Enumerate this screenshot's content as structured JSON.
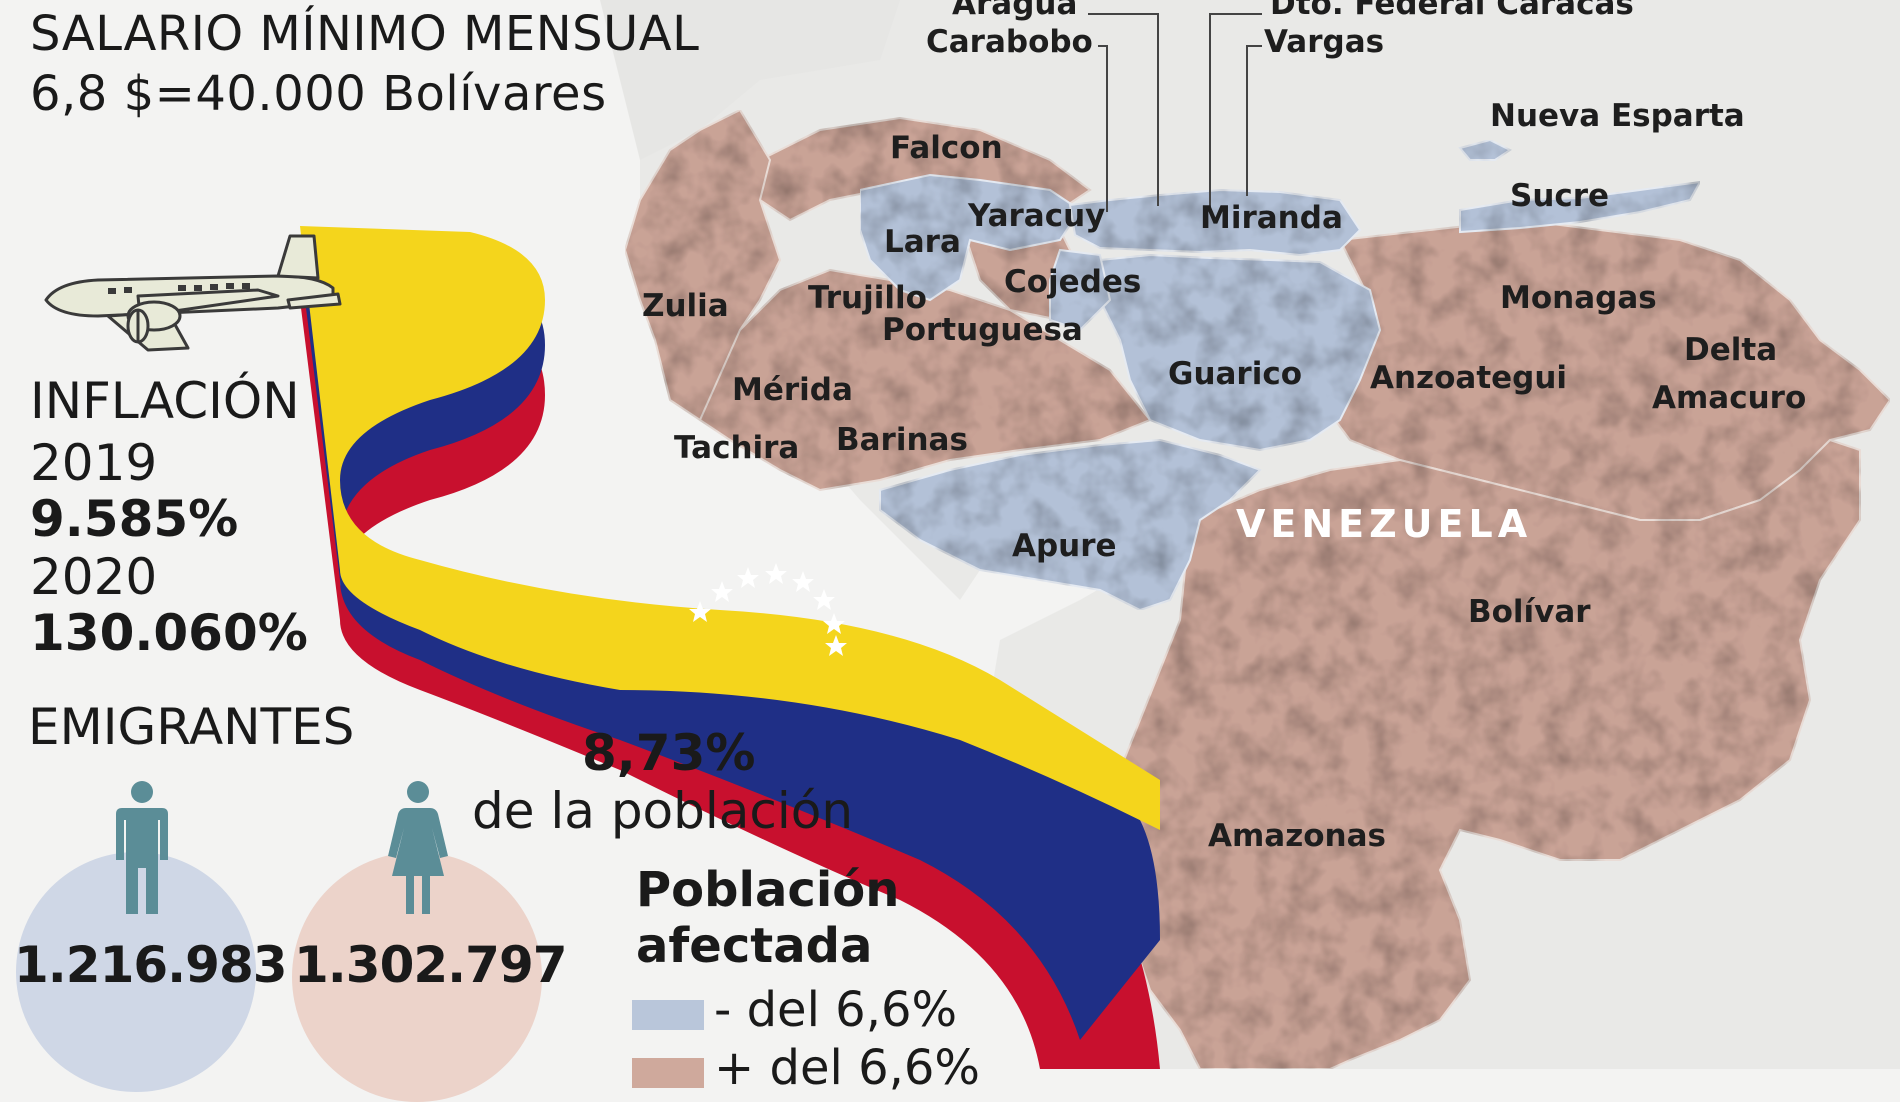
{
  "salary": {
    "title": "SALARIO MÍNIMO MENSUAL",
    "value": "6,8 $=40.000 Bolívares"
  },
  "inflation": {
    "title": "INFLACIÓN",
    "year_1": "2019",
    "value_1": "9.585%",
    "year_2": "2020",
    "value_2": "130.060%"
  },
  "emigrants": {
    "title": "EMIGRANTES",
    "men": "1.216.983",
    "women": "1.302.797",
    "percent": "8,73%",
    "percent_label": "de la población"
  },
  "legend": {
    "title_1": "Población",
    "title_2": "afectada",
    "less_label": "- del 6,6%",
    "more_label": "+ del 6,6%",
    "less_color": "#b9c6da",
    "more_color": "#cfa99c"
  },
  "map": {
    "country": "VENEZUELA",
    "regions": {
      "aragua": "Aragua",
      "carabobo": "Carabobo",
      "dto_federal": "Dto. Federal Caracas",
      "vargas": "Vargas",
      "nueva_esparta": "Nueva Esparta",
      "falcon": "Falcon",
      "sucre": "Sucre",
      "lara": "Lara",
      "yaracuy": "Yaracuy",
      "miranda": "Miranda",
      "zulia": "Zulia",
      "trujillo": "Trujillo",
      "cojedes": "Cojedes",
      "monagas": "Monagas",
      "portuguesa": "Portuguesa",
      "delta": "Delta",
      "amacuro": "Amacuro",
      "guarico": "Guarico",
      "anzoategui": "Anzoategui",
      "merida": "Mérida",
      "tachira": "Tachira",
      "barinas": "Barinas",
      "apure": "Apure",
      "bolivar": "Bolívar",
      "amazonas": "Amazonas"
    }
  },
  "colors": {
    "flag_yellow": "#f4d51c",
    "flag_blue": "#1f2f86",
    "flag_red": "#c8102e",
    "men_circle": "#cfd7e6",
    "women_circle": "#ecd3ca",
    "figure": "#5b8d97"
  }
}
